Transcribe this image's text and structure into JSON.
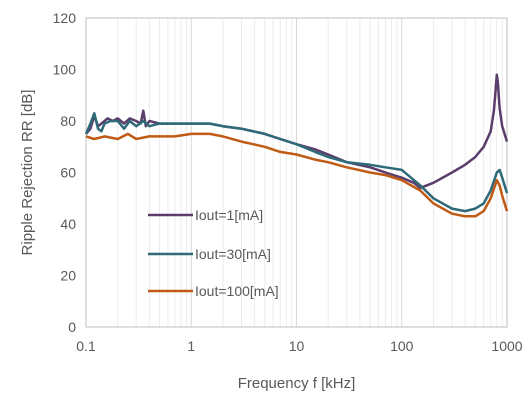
{
  "chart_data": {
    "type": "line",
    "title": "",
    "xlabel": "Frequency f [kHz]",
    "ylabel": "Ripple Rejection RR [dB]",
    "x_scale": "log",
    "xlim": [
      0.1,
      1000
    ],
    "ylim": [
      0,
      120
    ],
    "x_ticks": [
      {
        "value": 0.1,
        "label": "0.1"
      },
      {
        "value": 1,
        "label": "1"
      },
      {
        "value": 10,
        "label": "10"
      },
      {
        "value": 100,
        "label": "100"
      },
      {
        "value": 1000,
        "label": "1000"
      }
    ],
    "y_ticks": [
      {
        "value": 0,
        "label": "0"
      },
      {
        "value": 20,
        "label": "20"
      },
      {
        "value": 40,
        "label": "40"
      },
      {
        "value": 60,
        "label": "60"
      },
      {
        "value": 80,
        "label": "80"
      },
      {
        "value": 100,
        "label": "100"
      },
      {
        "value": 120,
        "label": "120"
      }
    ],
    "grid": true,
    "legend_position": "center-left",
    "series": [
      {
        "name": "Iout=1[mA]",
        "color": "#5b3d6b",
        "points": [
          [
            0.1,
            75
          ],
          [
            0.11,
            77
          ],
          [
            0.12,
            82
          ],
          [
            0.13,
            78
          ],
          [
            0.14,
            79
          ],
          [
            0.16,
            81
          ],
          [
            0.18,
            80
          ],
          [
            0.2,
            81
          ],
          [
            0.23,
            79
          ],
          [
            0.26,
            81
          ],
          [
            0.3,
            80
          ],
          [
            0.33,
            79
          ],
          [
            0.35,
            84
          ],
          [
            0.37,
            78
          ],
          [
            0.4,
            80
          ],
          [
            0.5,
            79
          ],
          [
            0.6,
            79
          ],
          [
            0.8,
            79
          ],
          [
            1,
            79
          ],
          [
            1.5,
            79
          ],
          [
            2,
            78
          ],
          [
            3,
            77
          ],
          [
            5,
            75
          ],
          [
            7,
            73
          ],
          [
            10,
            71
          ],
          [
            15,
            69
          ],
          [
            20,
            67
          ],
          [
            30,
            64
          ],
          [
            50,
            62
          ],
          [
            70,
            60
          ],
          [
            100,
            58
          ],
          [
            130,
            56
          ],
          [
            150,
            54
          ],
          [
            200,
            56
          ],
          [
            300,
            60
          ],
          [
            400,
            63
          ],
          [
            500,
            66
          ],
          [
            600,
            70
          ],
          [
            700,
            76
          ],
          [
            750,
            84
          ],
          [
            780,
            92
          ],
          [
            800,
            98
          ],
          [
            820,
            95
          ],
          [
            850,
            85
          ],
          [
            900,
            78
          ],
          [
            1000,
            72
          ]
        ]
      },
      {
        "name": "Iout=30[mA]",
        "color": "#2e6a78",
        "points": [
          [
            0.1,
            75
          ],
          [
            0.11,
            79
          ],
          [
            0.12,
            83
          ],
          [
            0.13,
            77
          ],
          [
            0.14,
            76
          ],
          [
            0.15,
            79
          ],
          [
            0.17,
            80
          ],
          [
            0.2,
            80
          ],
          [
            0.23,
            77
          ],
          [
            0.26,
            80
          ],
          [
            0.3,
            78
          ],
          [
            0.35,
            80
          ],
          [
            0.4,
            78
          ],
          [
            0.5,
            79
          ],
          [
            0.6,
            79
          ],
          [
            0.8,
            79
          ],
          [
            1,
            79
          ],
          [
            1.5,
            79
          ],
          [
            2,
            78
          ],
          [
            3,
            77
          ],
          [
            5,
            75
          ],
          [
            7,
            73
          ],
          [
            10,
            71
          ],
          [
            15,
            68
          ],
          [
            20,
            66
          ],
          [
            30,
            64
          ],
          [
            50,
            63
          ],
          [
            70,
            62
          ],
          [
            100,
            61
          ],
          [
            150,
            55
          ],
          [
            200,
            50
          ],
          [
            300,
            46
          ],
          [
            400,
            45
          ],
          [
            500,
            46
          ],
          [
            600,
            48
          ],
          [
            700,
            53
          ],
          [
            800,
            60
          ],
          [
            850,
            61
          ],
          [
            900,
            58
          ],
          [
            1000,
            52
          ]
        ]
      },
      {
        "name": "Iout=100[mA]",
        "color": "#c05a14",
        "points": [
          [
            0.1,
            74
          ],
          [
            0.12,
            73
          ],
          [
            0.15,
            74
          ],
          [
            0.2,
            73
          ],
          [
            0.25,
            75
          ],
          [
            0.3,
            73
          ],
          [
            0.4,
            74
          ],
          [
            0.5,
            74
          ],
          [
            0.7,
            74
          ],
          [
            1,
            75
          ],
          [
            1.5,
            75
          ],
          [
            2,
            74
          ],
          [
            3,
            72
          ],
          [
            5,
            70
          ],
          [
            7,
            68
          ],
          [
            10,
            67
          ],
          [
            15,
            65
          ],
          [
            20,
            64
          ],
          [
            30,
            62
          ],
          [
            50,
            60
          ],
          [
            70,
            59
          ],
          [
            100,
            57
          ],
          [
            150,
            53
          ],
          [
            200,
            48
          ],
          [
            300,
            44
          ],
          [
            400,
            43
          ],
          [
            500,
            43
          ],
          [
            600,
            45
          ],
          [
            700,
            50
          ],
          [
            800,
            57
          ],
          [
            850,
            55
          ],
          [
            900,
            51
          ],
          [
            1000,
            45
          ]
        ]
      }
    ]
  }
}
